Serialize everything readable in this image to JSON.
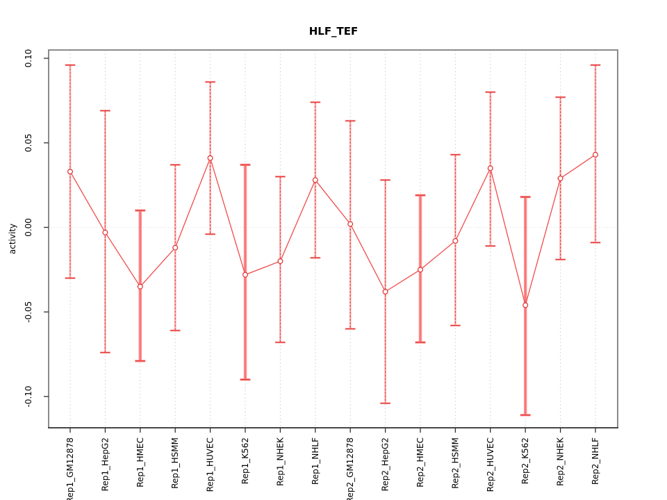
{
  "figure": {
    "background": "#ffffff"
  },
  "chart_data": {
    "type": "line",
    "title": "HLF_TEF",
    "ylabel": "activity",
    "xlabel": "",
    "legend": "none",
    "grid": "dashed vertical gridline at each category; dotted horizontal gridline at y=0",
    "categories": [
      "Rep1_GM12878",
      "Rep1_HepG2",
      "Rep1_HMEC",
      "Rep1_HSMM",
      "Rep1_HUVEC",
      "Rep1_K562",
      "Rep1_NHEK",
      "Rep1_NHLF",
      "Rep2_GM12878",
      "Rep2_HepG2",
      "Rep2_HMEC",
      "Rep2_HSMM",
      "Rep2_HUVEC",
      "Rep2_K562",
      "Rep2_NHEK",
      "Rep2_NHLF"
    ],
    "series": [
      {
        "name": "activity",
        "values": [
          0.033,
          -0.003,
          -0.035,
          -0.012,
          0.041,
          -0.028,
          -0.02,
          0.028,
          0.002,
          -0.038,
          -0.025,
          -0.008,
          0.035,
          -0.046,
          0.029,
          0.043
        ],
        "error_upper": [
          0.096,
          0.069,
          0.01,
          0.037,
          0.086,
          0.037,
          0.03,
          0.074,
          0.063,
          0.028,
          0.019,
          0.043,
          0.08,
          0.018,
          0.077,
          0.096
        ],
        "error_lower": [
          -0.03,
          -0.074,
          -0.079,
          -0.061,
          -0.004,
          -0.09,
          -0.068,
          -0.018,
          -0.06,
          -0.104,
          -0.068,
          -0.058,
          -0.011,
          -0.111,
          -0.019,
          -0.009
        ]
      }
    ],
    "thick_bar_categories": [
      "Rep1_HMEC",
      "Rep1_K562",
      "Rep2_HMEC",
      "Rep2_K562"
    ],
    "ylim": [
      -0.1185,
      0.1049
    ],
    "yticks": [
      0.1,
      0.05,
      0.0,
      -0.05,
      -0.1
    ],
    "ytick_labels": [
      "0.10",
      "0.05",
      "0.00",
      "-0.05",
      "-0.10"
    ],
    "colors": {
      "series_line": "#f04b4b",
      "marker": "#e23c3c",
      "error_bar_core": "#e23c3c",
      "error_bar_halo": "#ff7d7d",
      "gridline": "#d9d9d9",
      "plot_border": "#8a8a8a",
      "axis": "#303030",
      "text": "#000000"
    }
  }
}
